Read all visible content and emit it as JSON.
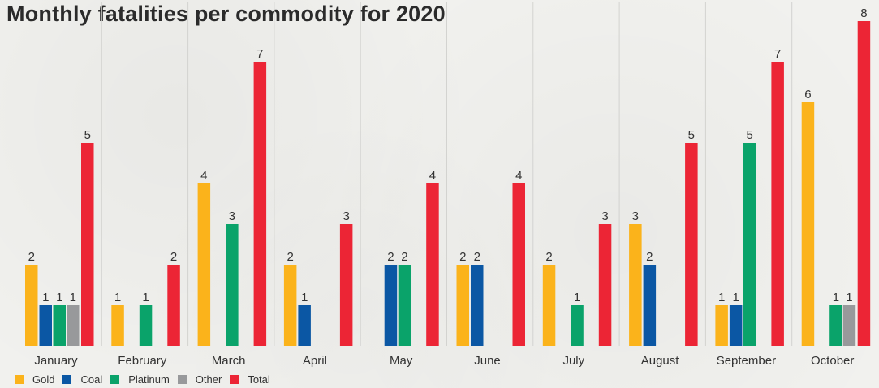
{
  "chart_data": {
    "type": "bar",
    "title": "Monthly fatalities per commodity for 2020",
    "categories": [
      "January",
      "February",
      "March",
      "April",
      "May",
      "June",
      "July",
      "August",
      "September",
      "October"
    ],
    "series": [
      {
        "name": "Gold",
        "color": "#fbb31b",
        "values": [
          2,
          1,
          4,
          2,
          0,
          2,
          2,
          3,
          1,
          6
        ]
      },
      {
        "name": "Coal",
        "color": "#0b57a4",
        "values": [
          1,
          0,
          0,
          1,
          2,
          2,
          0,
          2,
          1,
          0
        ]
      },
      {
        "name": "Platinum",
        "color": "#0aa36a",
        "values": [
          1,
          1,
          3,
          0,
          2,
          0,
          1,
          0,
          5,
          1
        ]
      },
      {
        "name": "Other",
        "color": "#98999b",
        "values": [
          1,
          0,
          0,
          0,
          0,
          0,
          0,
          0,
          0,
          1
        ]
      },
      {
        "name": "Total",
        "color": "#ec2535",
        "values": [
          5,
          2,
          7,
          3,
          4,
          4,
          3,
          5,
          7,
          8
        ]
      }
    ],
    "ylim": [
      0,
      8
    ],
    "xlabel": "",
    "ylabel": "",
    "grid": "vertical separators between months",
    "legend_position": "bottom-left",
    "data_labels": "shown for non-zero values"
  }
}
